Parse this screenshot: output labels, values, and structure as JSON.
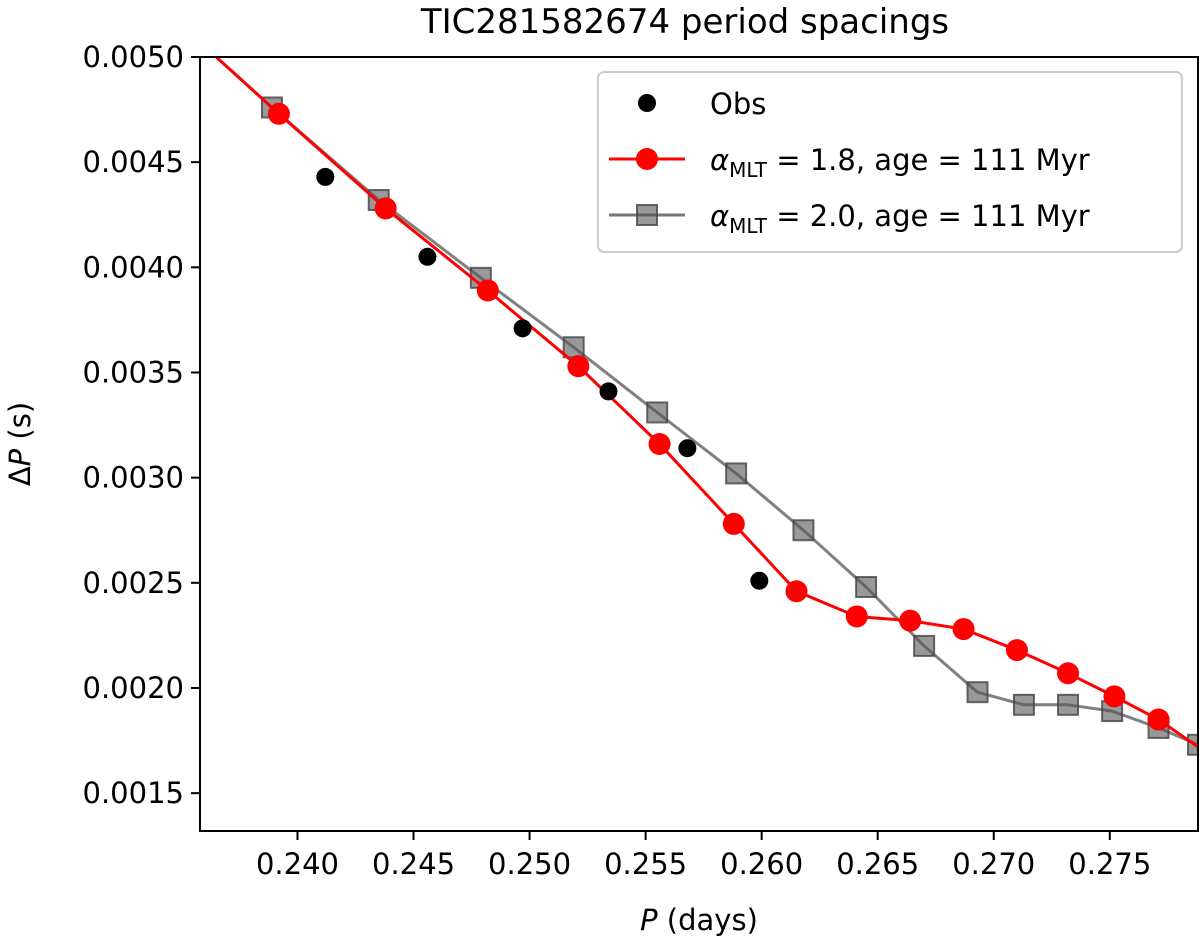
{
  "chart_data": {
    "type": "scatter+line",
    "title": "TIC281582674 period spacings",
    "xlabel": {
      "symbol": "P",
      "rest": " (days)"
    },
    "ylabel": {
      "symbol": "P",
      "prefix": "Δ",
      "rest": " (s)"
    },
    "xlim": [
      0.2358,
      0.2788
    ],
    "ylim": [
      0.00132,
      0.005
    ],
    "xticks": [
      0.24,
      0.245,
      0.25,
      0.255,
      0.26,
      0.265,
      0.27,
      0.275
    ],
    "xtick_labels": [
      "0.240",
      "0.245",
      "0.250",
      "0.255",
      "0.260",
      "0.265",
      "0.270",
      "0.275"
    ],
    "yticks": [
      0.0015,
      0.002,
      0.0025,
      0.003,
      0.0035,
      0.004,
      0.0045,
      0.005
    ],
    "ytick_labels": [
      "0.0015",
      "0.0020",
      "0.0025",
      "0.0030",
      "0.0035",
      "0.0040",
      "0.0045",
      "0.0050"
    ],
    "legend_position": "upper-right",
    "series": [
      {
        "name": "Obs",
        "legend": {
          "main": "Obs"
        },
        "style": "markers",
        "marker": "circle",
        "color": "#000000",
        "x": [
          0.2412,
          0.2456,
          0.2497,
          0.2534,
          0.2568,
          0.2599
        ],
        "y": [
          0.00443,
          0.00405,
          0.00371,
          0.00341,
          0.00314,
          0.00251
        ]
      },
      {
        "name": "alpha_MLT = 1.8, age = 111 Myr",
        "legend": {
          "sym": "α",
          "sub": "MLT",
          "rest": " = 1.8, age = 111 Myr"
        },
        "style": "line+markers",
        "marker": "circle",
        "color": "#ff0000",
        "line_extends_to": [
          [
            0.2358,
            0.00507
          ],
          [
            0.2788,
            0.00172
          ]
        ],
        "x": [
          0.2392,
          0.2438,
          0.2482,
          0.2521,
          0.2556,
          0.2588,
          0.2615,
          0.2641,
          0.2664,
          0.2687,
          0.271,
          0.2732,
          0.2752,
          0.2771
        ],
        "y": [
          0.00473,
          0.00428,
          0.00389,
          0.00353,
          0.00316,
          0.00278,
          0.00246,
          0.00234,
          0.00232,
          0.00228,
          0.00218,
          0.00207,
          0.00196,
          0.00185
        ]
      },
      {
        "name": "alpha_MLT = 2.0, age = 111 Myr",
        "legend": {
          "sym": "α",
          "sub": "MLT",
          "rest": " = 2.0, age = 111 Myr"
        },
        "style": "line+markers",
        "marker": "square",
        "color": "#555555",
        "line_extends_to": [
          [
            0.2358,
            0.00507
          ],
          null
        ],
        "x": [
          0.2389,
          0.2435,
          0.2479,
          0.2519,
          0.2555,
          0.2589,
          0.2618,
          0.2645,
          0.267,
          0.2693,
          0.2713,
          0.2732,
          0.2751,
          0.2771,
          0.2788
        ],
        "y": [
          0.00476,
          0.00432,
          0.00395,
          0.00362,
          0.00331,
          0.00302,
          0.00275,
          0.00248,
          0.0022,
          0.00198,
          0.00192,
          0.00192,
          0.00189,
          0.00181,
          0.00173
        ]
      }
    ]
  }
}
